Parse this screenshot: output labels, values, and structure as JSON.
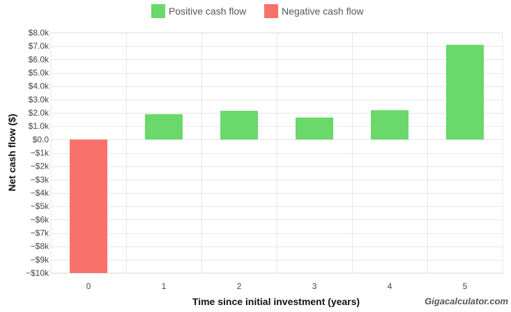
{
  "chart_data": {
    "type": "bar",
    "title": "",
    "xlabel": "Time since initial investment (years)",
    "ylabel": "Net cash flow ($)",
    "categories": [
      "0",
      "1",
      "2",
      "3",
      "4",
      "5"
    ],
    "values": [
      -10000,
      1900,
      2150,
      1650,
      2200,
      7100
    ],
    "ylim": [
      -10000,
      8000
    ],
    "yticks": [
      8000,
      7000,
      6000,
      5000,
      4000,
      3000,
      2000,
      1000,
      0,
      -1000,
      -2000,
      -3000,
      -4000,
      -5000,
      -6000,
      -7000,
      -8000,
      -9000,
      -10000
    ],
    "ytick_labels": [
      "$8.0k",
      "$7.0k",
      "$6.0k",
      "$5.0k",
      "$4.0k",
      "$3.0k",
      "$2.0k",
      "$1.0k",
      "$0.0",
      "−$1k",
      "−$2k",
      "−$3k",
      "−$4k",
      "−$5k",
      "−$6k",
      "−$7k",
      "−$8k",
      "−$9k",
      "−$10k"
    ],
    "grid": true,
    "legend_position": "top-center",
    "legend": [
      {
        "name": "Positive cash flow",
        "color": "#6ad86a"
      },
      {
        "name": "Negative cash flow",
        "color": "#f8716a"
      }
    ],
    "colors": {
      "positive": "#6ad86a",
      "negative": "#f8716a",
      "grid": "#e6e6e6"
    }
  },
  "watermark": "Gigacalculator.com"
}
